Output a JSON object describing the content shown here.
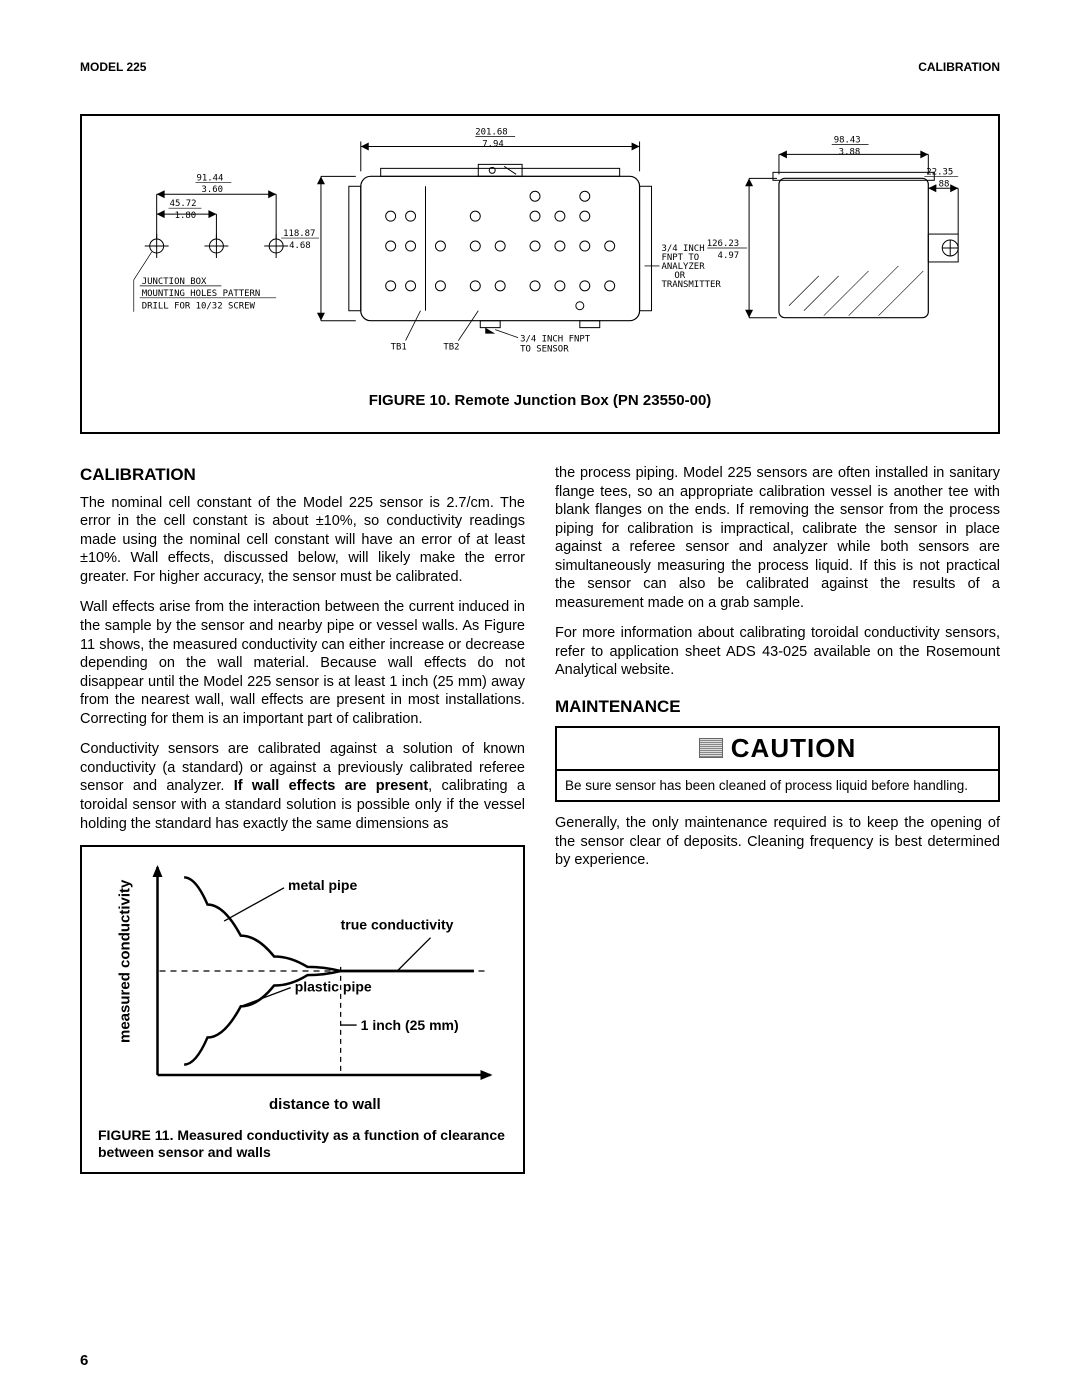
{
  "header": {
    "left": "MODEL 225",
    "right": "CALIBRATION"
  },
  "figure10": {
    "caption": "FIGURE 10.  Remote Junction Box (PN 23550-00)",
    "dims": {
      "top_w": {
        "num": "201.68",
        "den": "7.94"
      },
      "d1": {
        "num": "91.44",
        "den": "3.60"
      },
      "d2": {
        "num": "45.72",
        "den": "1.80"
      },
      "d_h": {
        "num": "118.87",
        "den": "4.68"
      },
      "r1": {
        "num": "98.43",
        "den": "3.88"
      },
      "r2": {
        "num": "22.35",
        "den": ".88"
      },
      "r3": {
        "num": "126.23",
        "den": "4.97"
      }
    },
    "labels": {
      "junction": "JUNCTION BOX",
      "mounting": "MOUNTING HOLES PATTERN",
      "drill": "DRILL FOR 10/32 SCREW",
      "tb1": "TB1",
      "tb2": "TB2",
      "sensor": "3/4 INCH FNPT\nTO SENSOR",
      "analyzer": "3/4 INCH\nFNPT TO\nANALYZER\nOR\nTRANSMITTER"
    }
  },
  "sections": {
    "calibration_title": "CALIBRATION",
    "cal_p1": "The nominal cell constant of the Model 225 sensor is 2.7/cm. The error in the cell constant is about ±10%, so conductivity readings made using the nominal cell constant will have an error of at least ±10%. Wall effects, discussed below, will likely make the error greater. For higher accuracy, the sensor must be calibrated.",
    "cal_p2": "Wall effects arise from the interaction between the current induced in the sample by the sensor and nearby pipe or vessel walls. As Figure 11 shows, the measured conductivity can either increase or decrease depending on the wall material. Because wall effects do not disappear until the Model 225 sensor is at least 1 inch (25 mm) away from the nearest wall, wall effects are present in most installations. Correcting for them is an important part of calibration.",
    "cal_p3a": "Conductivity sensors are calibrated against a solution of known conductivity (a standard) or against a previously calibrated referee sensor and analyzer. ",
    "cal_p3b": "If wall effects are present",
    "cal_p3c": ", calibrating a toroidal sensor with a standard solution is possible only if the vessel holding the standard has exactly the same dimensions as ",
    "cal_p4": "the process piping. Model 225 sensors are often installed in sanitary flange tees, so an appropriate calibration vessel is another tee with blank flanges on the ends. If removing the sensor from the process piping for calibration is impractical, calibrate the sensor in place against a referee sensor and analyzer while both sensors are simultaneously measuring the process liquid. If this is not practical the sensor can also be calibrated against the results of a measurement made on a grab sample.",
    "cal_p5": "For more information about calibrating toroidal conductivity sensors, refer to application sheet ADS 43-025 available on the Rosemount Analytical website.",
    "maintenance_title": "MAINTENANCE",
    "maint_p1": "Generally, the only maintenance required is to keep the opening of the sensor clear of deposits. Cleaning frequency is best determined by experience."
  },
  "caution": {
    "title": "CAUTION",
    "body": "Be sure sensor has been cleaned of process liquid before handling."
  },
  "figure11": {
    "caption": "FIGURE 11. Measured conductivity as a function of clearance between sensor and walls",
    "ylabel": "measured conductivity",
    "xlabel": "distance  to wall",
    "metal_label": "metal pipe",
    "true_label": "true conductivity",
    "plastic_label": "plastic pipe",
    "inch_label": "1 inch (25 mm)",
    "chart": {
      "xlim": [
        0,
        100
      ],
      "ylim": [
        0,
        100
      ],
      "metal_pipe": {
        "color": "#000000",
        "width": 2.5,
        "points": [
          [
            8,
            95
          ],
          [
            15,
            82
          ],
          [
            25,
            67
          ],
          [
            35,
            57
          ],
          [
            45,
            52
          ],
          [
            55,
            50
          ],
          [
            65,
            50
          ],
          [
            80,
            50
          ],
          [
            95,
            50
          ]
        ]
      },
      "plastic_pipe": {
        "color": "#000000",
        "width": 2.5,
        "points": [
          [
            8,
            5
          ],
          [
            15,
            18
          ],
          [
            25,
            33
          ],
          [
            35,
            43
          ],
          [
            45,
            48
          ],
          [
            55,
            50
          ],
          [
            65,
            50
          ],
          [
            80,
            50
          ],
          [
            95,
            50
          ]
        ]
      },
      "true_line_y": 50,
      "one_inch_x": 55
    }
  },
  "page_number": "6"
}
